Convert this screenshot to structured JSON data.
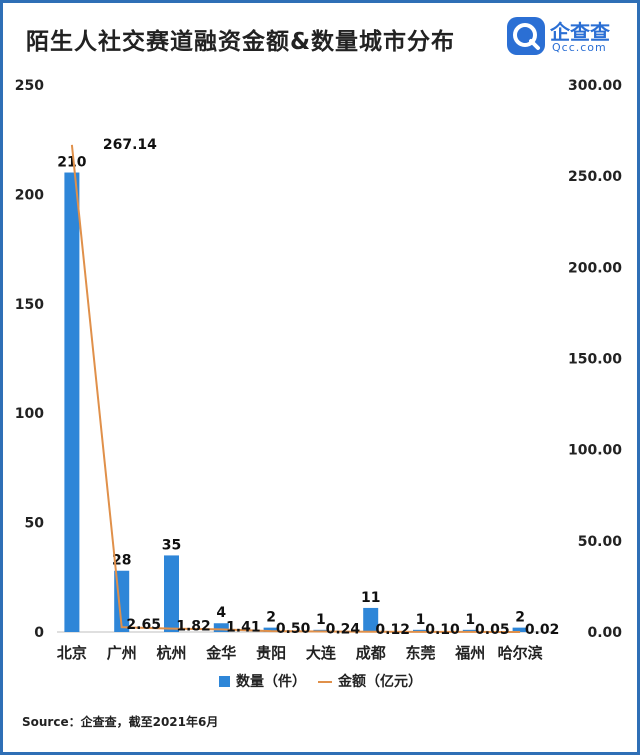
{
  "title": "陌生人社交赛道融资金额&数量城市分布",
  "logo": {
    "name": "企查查",
    "sub": "Qcc.com"
  },
  "source": "Source：企查查，截至2021年6月",
  "colors": {
    "bar": "#2e86d8",
    "line": "#e0904a",
    "frame": "#2f6fb6",
    "logo": "#2b6fd4"
  },
  "chart_data": {
    "type": "bar+line",
    "categories": [
      "北京",
      "广州",
      "杭州",
      "金华",
      "贵阳",
      "大连",
      "成都",
      "东莞",
      "福州",
      "哈尔滨"
    ],
    "series": [
      {
        "name": "数量（件）",
        "type": "bar",
        "axis": "left",
        "values": [
          210,
          28,
          35,
          4,
          2,
          1,
          11,
          1,
          1,
          2
        ],
        "labels": [
          "210",
          "28",
          "35",
          "4",
          "2",
          "1",
          "11",
          "1",
          "1",
          "2"
        ]
      },
      {
        "name": "金额（亿元）",
        "type": "line",
        "axis": "right",
        "values": [
          267.14,
          2.65,
          1.82,
          1.41,
          0.5,
          0.24,
          0.12,
          0.1,
          0.05,
          0.02
        ],
        "labels": [
          "267.14",
          "2.65",
          "1.82",
          "1.41",
          "0.50",
          "0.24",
          "0.12",
          "0.10",
          "0.05",
          "0.02"
        ]
      }
    ],
    "y_left": {
      "min": 0,
      "max": 250,
      "ticks": [
        "0",
        "50",
        "100",
        "150",
        "200",
        "250"
      ]
    },
    "y_right": {
      "min": 0,
      "max": 300,
      "ticks": [
        "0.00",
        "50.00",
        "100.00",
        "150.00",
        "200.00",
        "250.00",
        "300.00"
      ]
    },
    "legend_position": "bottom",
    "grid": false
  }
}
